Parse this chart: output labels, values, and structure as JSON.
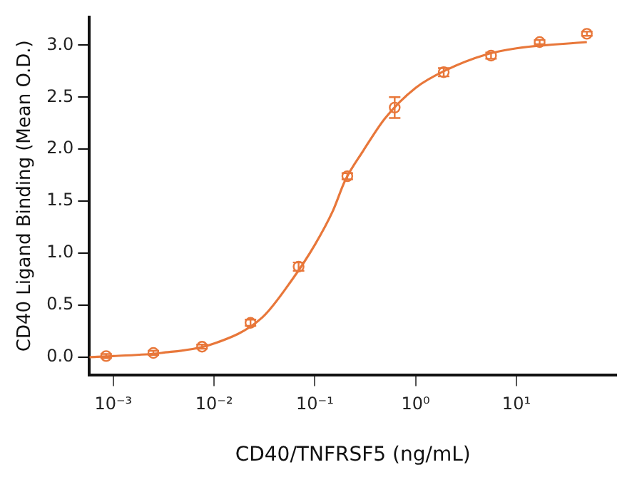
{
  "chart_data": {
    "type": "scatter",
    "xlabel": "CD40/TNFRSF5 (ng/mL)",
    "ylabel": "CD40 Ligand Binding (Mean O.D.)",
    "log": "x",
    "grid": false,
    "legend": false,
    "marker": "circle",
    "xlim": [
      0.00058,
      98
    ],
    "xticks": [
      {
        "value": 0.001,
        "label": "10⁻³"
      },
      {
        "value": 0.01,
        "label": "10⁻²"
      },
      {
        "value": 0.1,
        "label": "10⁻¹"
      },
      {
        "value": 1,
        "label": "10⁰"
      },
      {
        "value": 10,
        "label": "10¹"
      }
    ],
    "ylim": [
      -0.17,
      3.27
    ],
    "yticks": [
      {
        "value": 0,
        "label": "0.0"
      },
      {
        "value": 0.5,
        "label": "0.5"
      },
      {
        "value": 1,
        "label": "1.0"
      },
      {
        "value": 1.5,
        "label": "1.5"
      },
      {
        "value": 2,
        "label": "2.0"
      },
      {
        "value": 2.5,
        "label": "2.5"
      },
      {
        "value": 3,
        "label": "3.0"
      }
    ],
    "series": [
      {
        "color": "#e8773a",
        "x": [
          0.00085,
          0.0025,
          0.0076,
          0.023,
          0.069,
          0.21,
          0.62,
          1.9,
          5.6,
          17,
          50
        ],
        "values": [
          0.01,
          0.04,
          0.1,
          0.33,
          0.87,
          1.74,
          2.4,
          2.74,
          2.9,
          3.03,
          3.11
        ],
        "errors": [
          0.02,
          0.02,
          0.02,
          0.03,
          0.04,
          0.03,
          0.1,
          0.04,
          0.03,
          0.02,
          0.02
        ]
      },
      {
        "type": "line",
        "color": "#e8773a",
        "marker": "none",
        "x": [
          0.00058,
          0.001,
          0.003,
          0.01,
          0.03,
          0.06,
          0.1,
          0.15,
          0.2,
          0.3,
          0.5,
          1,
          2,
          5,
          10,
          50
        ],
        "values": [
          0.0,
          0.01,
          0.04,
          0.13,
          0.38,
          0.75,
          1.08,
          1.4,
          1.7,
          1.98,
          2.3,
          2.59,
          2.76,
          2.91,
          2.97,
          3.03
        ]
      }
    ]
  }
}
